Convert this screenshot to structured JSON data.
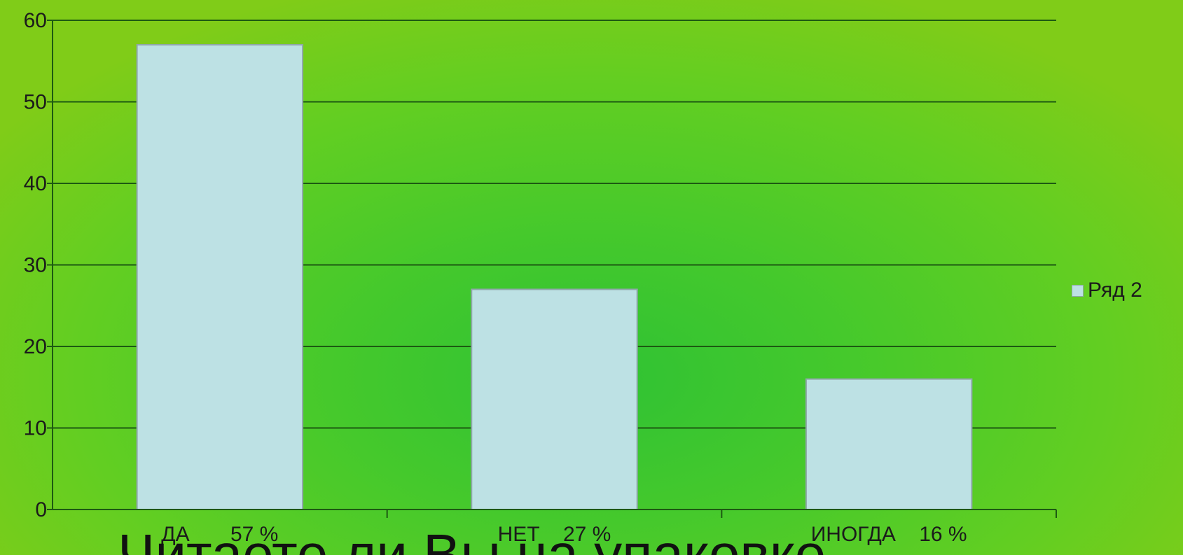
{
  "chart_data": {
    "type": "bar",
    "categories": [
      "ДА       57 %",
      "НЕТ    27 %",
      "ИНОГДА    16 %"
    ],
    "series": [
      {
        "name": "Ряд 2",
        "values": [
          57,
          27,
          16
        ]
      }
    ],
    "ylim": [
      0,
      60
    ],
    "yticks": [
      0,
      10,
      20,
      30,
      40,
      50,
      60
    ],
    "grid": true,
    "legend_position": "right",
    "colors": {
      "bar_fill": "#bde1e4",
      "bar_stroke": "#8fa7a9",
      "gridline": "#1d5a12",
      "axis": "#1d5a12"
    }
  },
  "overlay_title": "Читаете ли Вы на упаковке"
}
